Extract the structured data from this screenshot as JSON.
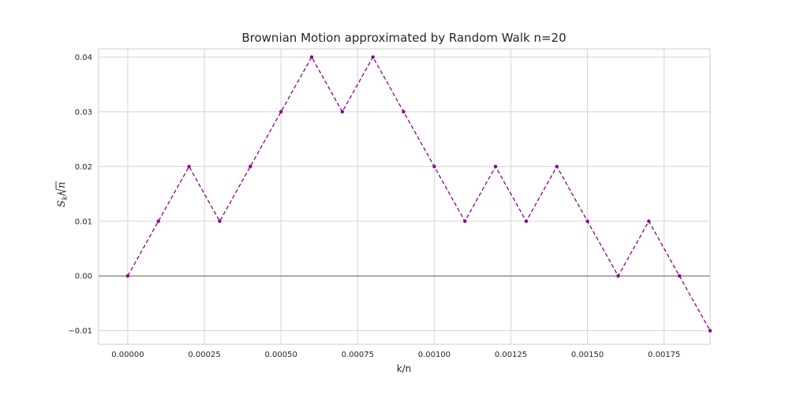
{
  "chart_data": {
    "type": "line",
    "title": "Brownian Motion approximated by Random Walk n=20",
    "xlabel": "k/n",
    "ylabel_parts": {
      "base": "S",
      "sub": "k",
      "slash": "/",
      "radicand": "n"
    },
    "x_ticks": [
      "0.00000",
      "0.00025",
      "0.00050",
      "0.00075",
      "0.00100",
      "0.00125",
      "0.00150",
      "0.00175"
    ],
    "y_ticks": [
      "−0.01",
      "0.00",
      "0.01",
      "0.02",
      "0.03",
      "0.04"
    ],
    "xlim": [
      -9.5e-05,
      0.0019
    ],
    "ylim": [
      -0.0125,
      0.0415
    ],
    "grid": true,
    "zero_line": true,
    "series": [
      {
        "color": "#8b008b",
        "linestyle": "dashed",
        "marker": "dot",
        "x": [
          0,
          0.0001,
          0.0002,
          0.0003,
          0.0004,
          0.0005,
          0.0006,
          0.0007,
          0.0008,
          0.0009,
          0.001,
          0.0011,
          0.0012,
          0.0013,
          0.0014,
          0.0015,
          0.0016,
          0.0017,
          0.0018,
          0.0019
        ],
        "y": [
          0.0,
          0.01,
          0.02,
          0.01,
          0.02,
          0.03,
          0.04,
          0.03,
          0.04,
          0.03,
          0.02,
          0.01,
          0.02,
          0.01,
          0.02,
          0.01,
          0.0,
          0.01,
          0.0,
          -0.01
        ]
      }
    ]
  }
}
